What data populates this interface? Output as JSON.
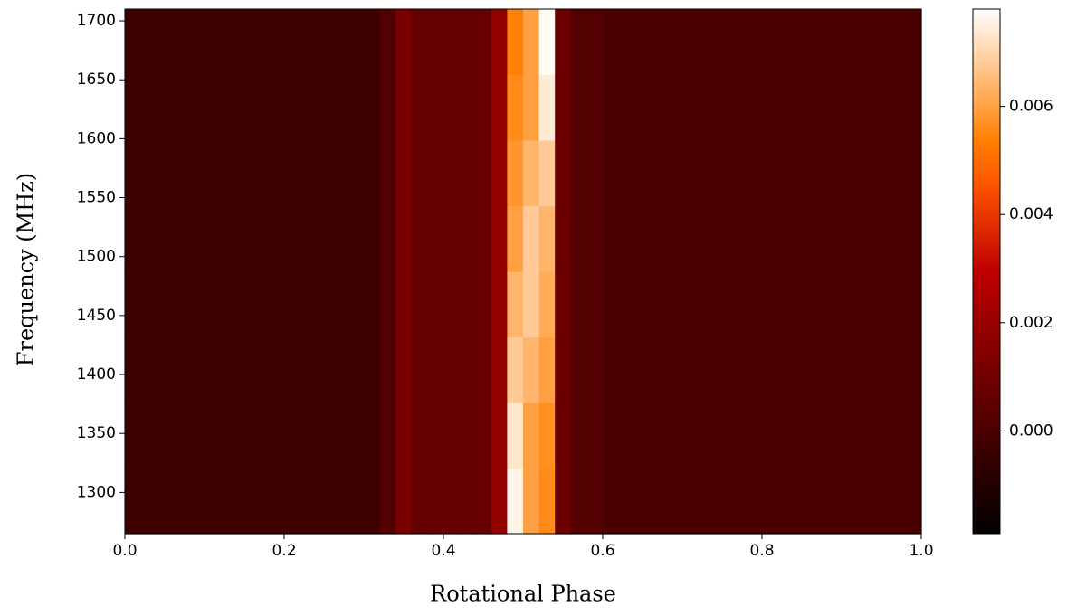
{
  "chart_data": {
    "type": "heatmap",
    "xlabel": "Rotational Phase",
    "ylabel": "Frequency (MHz)",
    "colormap": "gist_heat",
    "xlim": [
      0,
      1
    ],
    "ylim": [
      1265,
      1710
    ],
    "xticks": [
      {
        "value": 0,
        "label": "0.0"
      },
      0.2,
      0.4,
      0.6,
      0.8,
      {
        "value": 1,
        "label": "1.0"
      }
    ],
    "yticks": [
      1300,
      1350,
      1400,
      1450,
      1500,
      1550,
      1600,
      1650,
      1700
    ],
    "clim": [
      -0.0019,
      0.0078
    ],
    "cticks": [
      {
        "value": 0,
        "label": "0.000"
      },
      0.002,
      0.004,
      0.006
    ],
    "xedges": [
      0,
      0.02,
      0.04,
      0.06,
      0.08,
      0.1,
      0.12,
      0.14,
      0.16,
      0.18,
      0.2,
      0.22,
      0.24,
      0.26,
      0.28,
      0.3,
      0.32,
      0.34,
      0.36,
      0.38,
      0.4,
      0.42,
      0.44,
      0.46,
      0.48,
      0.5,
      0.52,
      0.54,
      0.56,
      0.58,
      0.6,
      0.62,
      0.64,
      0.66,
      0.68,
      0.7,
      0.72,
      0.74,
      0.76,
      0.78,
      0.8,
      0.82,
      0.84,
      0.86,
      0.88,
      0.9,
      0.92,
      0.94,
      0.96,
      0.98,
      1
    ],
    "yedges": [
      1265,
      1320.6,
      1376.3,
      1431.9,
      1487.5,
      1543.1,
      1598.8,
      1654.4,
      1710
    ],
    "z": [
      [
        -0.0003,
        -0.0003,
        -0.0003,
        -0.0003,
        -0.0003,
        -0.0003,
        -0.0003,
        -0.0003,
        -0.0003,
        -0.0003,
        -0.0003,
        -0.0003,
        -0.0003,
        -0.0003,
        -0.0003,
        -0.0003,
        0.0002,
        0.0012,
        0.0006,
        0.0007,
        0.0007,
        0.0007,
        0.0007,
        0.0018,
        0.0076,
        0.006,
        0.0056,
        0.0008,
        0.0002,
        0.0002,
        0,
        0,
        0,
        0,
        0,
        0,
        0,
        0,
        0,
        0,
        0,
        0,
        0,
        0,
        0,
        0,
        0,
        0,
        0,
        0
      ],
      [
        -0.0003,
        -0.0003,
        -0.0003,
        -0.0003,
        -0.0003,
        -0.0003,
        -0.0003,
        -0.0003,
        -0.0003,
        -0.0003,
        -0.0003,
        -0.0003,
        -0.0003,
        -0.0003,
        -0.0003,
        -0.0003,
        0.0002,
        0.0012,
        0.0006,
        0.0007,
        0.0007,
        0.0007,
        0.0007,
        0.0018,
        0.0073,
        0.006,
        0.0057,
        0.0008,
        0.0002,
        0.0002,
        0,
        0,
        0,
        0,
        0,
        0,
        0,
        0,
        0,
        0,
        0,
        0,
        0,
        0,
        0,
        0,
        0,
        0,
        0,
        0
      ],
      [
        -0.0003,
        -0.0003,
        -0.0003,
        -0.0003,
        -0.0003,
        -0.0003,
        -0.0003,
        -0.0003,
        -0.0003,
        -0.0003,
        -0.0003,
        -0.0003,
        -0.0003,
        -0.0003,
        -0.0003,
        -0.0003,
        0.0002,
        0.0012,
        0.0006,
        0.0007,
        0.0007,
        0.0007,
        0.0007,
        0.0018,
        0.0068,
        0.0064,
        0.006,
        0.0008,
        0.0002,
        0.0002,
        0,
        0,
        0,
        0,
        0,
        0,
        0,
        0,
        0,
        0,
        0,
        0,
        0,
        0,
        0,
        0,
        0,
        0,
        0,
        0
      ],
      [
        -0.0003,
        -0.0003,
        -0.0003,
        -0.0003,
        -0.0003,
        -0.0003,
        -0.0003,
        -0.0003,
        -0.0003,
        -0.0003,
        -0.0003,
        -0.0003,
        -0.0003,
        -0.0003,
        -0.0003,
        -0.0003,
        0.0002,
        0.0012,
        0.0006,
        0.0007,
        0.0007,
        0.0007,
        0.0007,
        0.0018,
        0.0064,
        0.0068,
        0.0062,
        0.0008,
        0.0002,
        0.0002,
        0,
        0,
        0,
        0,
        0,
        0,
        0,
        0,
        0,
        0,
        0,
        0,
        0,
        0,
        0,
        0,
        0,
        0,
        0,
        0
      ],
      [
        -0.0003,
        -0.0003,
        -0.0003,
        -0.0003,
        -0.0003,
        -0.0003,
        -0.0003,
        -0.0003,
        -0.0003,
        -0.0003,
        -0.0003,
        -0.0003,
        -0.0003,
        -0.0003,
        -0.0003,
        -0.0003,
        0.0002,
        0.0012,
        0.0006,
        0.0007,
        0.0007,
        0.0007,
        0.0007,
        0.0018,
        0.006,
        0.0068,
        0.0064,
        0.0008,
        0.0002,
        0.0002,
        0,
        0,
        0,
        0,
        0,
        0,
        0,
        0,
        0,
        0,
        0,
        0,
        0,
        0,
        0,
        0,
        0,
        0,
        0,
        0
      ],
      [
        -0.0003,
        -0.0003,
        -0.0003,
        -0.0003,
        -0.0003,
        -0.0003,
        -0.0003,
        -0.0003,
        -0.0003,
        -0.0003,
        -0.0003,
        -0.0003,
        -0.0003,
        -0.0003,
        -0.0003,
        -0.0003,
        0.0002,
        0.0012,
        0.0006,
        0.0007,
        0.0007,
        0.0007,
        0.0007,
        0.0018,
        0.0058,
        0.0064,
        0.0068,
        0.0008,
        0.0002,
        0.0002,
        0,
        0,
        0,
        0,
        0,
        0,
        0,
        0,
        0,
        0,
        0,
        0,
        0,
        0,
        0,
        0,
        0,
        0,
        0,
        0
      ],
      [
        -0.0003,
        -0.0003,
        -0.0003,
        -0.0003,
        -0.0003,
        -0.0003,
        -0.0003,
        -0.0003,
        -0.0003,
        -0.0003,
        -0.0003,
        -0.0003,
        -0.0003,
        -0.0003,
        -0.0003,
        -0.0003,
        0.0002,
        0.0012,
        0.0006,
        0.0007,
        0.0007,
        0.0007,
        0.0007,
        0.0018,
        0.0056,
        0.006,
        0.0074,
        0.0008,
        0.0002,
        0.0002,
        0,
        0,
        0,
        0,
        0,
        0,
        0,
        0,
        0,
        0,
        0,
        0,
        0,
        0,
        0,
        0,
        0,
        0,
        0,
        0
      ],
      [
        -0.0003,
        -0.0003,
        -0.0003,
        -0.0003,
        -0.0003,
        -0.0003,
        -0.0003,
        -0.0003,
        -0.0003,
        -0.0003,
        -0.0003,
        -0.0003,
        -0.0003,
        -0.0003,
        -0.0003,
        -0.0003,
        0.0002,
        0.0012,
        0.0006,
        0.0007,
        0.0007,
        0.0007,
        0.0007,
        0.0018,
        0.0054,
        0.006,
        0.0077,
        0.0008,
        0.0002,
        0.0002,
        0,
        0,
        0,
        0,
        0,
        0,
        0,
        0,
        0,
        0,
        0,
        0,
        0,
        0,
        0,
        0,
        0,
        0,
        0,
        0
      ]
    ]
  }
}
